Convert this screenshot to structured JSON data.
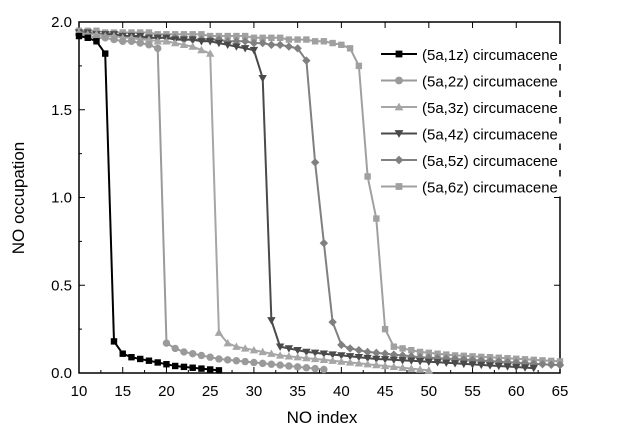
{
  "chart_data": {
    "type": "line",
    "title": "",
    "xlabel": "NO index",
    "ylabel": "NO occupation",
    "xlim": [
      10,
      65
    ],
    "ylim": [
      0.0,
      2.0
    ],
    "xticks": [
      "10",
      "15",
      "20",
      "25",
      "30",
      "35",
      "40",
      "45",
      "50",
      "55",
      "60",
      "65"
    ],
    "yticks": [
      "0.0",
      "0.5",
      "1.0",
      "1.5",
      "2.0"
    ],
    "grid": false,
    "legend_position": "top-right",
    "series": [
      {
        "name": "(5a,1z) circumacene",
        "color": "#000000",
        "marker": "square",
        "x": [
          10,
          11,
          12,
          13,
          14,
          15,
          16,
          17,
          18,
          19,
          20,
          21,
          22,
          23,
          24,
          25,
          26
        ],
        "y": [
          1.92,
          1.91,
          1.89,
          1.82,
          0.18,
          0.11,
          0.09,
          0.08,
          0.07,
          0.06,
          0.05,
          0.04,
          0.035,
          0.03,
          0.025,
          0.02,
          0.015
        ]
      },
      {
        "name": "(5a,2z) circumacene",
        "color": "#9a9a9a",
        "marker": "circle",
        "x": [
          10,
          11,
          12,
          13,
          14,
          15,
          16,
          17,
          18,
          19,
          20,
          21,
          22,
          23,
          24,
          25,
          26,
          27,
          28,
          29,
          30,
          31,
          32,
          33,
          34,
          35,
          36,
          37,
          38
        ],
        "y": [
          1.93,
          1.92,
          1.91,
          1.91,
          1.9,
          1.89,
          1.89,
          1.88,
          1.87,
          1.85,
          0.17,
          0.14,
          0.12,
          0.11,
          0.1,
          0.09,
          0.08,
          0.075,
          0.07,
          0.065,
          0.06,
          0.055,
          0.05,
          0.045,
          0.04,
          0.035,
          0.03,
          0.025,
          0.02
        ]
      },
      {
        "name": "(5a,3z) circumacene",
        "color": "#a6a6a6",
        "marker": "triangle-up",
        "x": [
          10,
          11,
          12,
          13,
          14,
          15,
          16,
          17,
          18,
          19,
          20,
          21,
          22,
          23,
          24,
          25,
          26,
          27,
          28,
          29,
          30,
          31,
          32,
          33,
          34,
          35,
          36,
          37,
          38,
          39,
          40,
          41,
          42,
          43,
          44,
          45,
          46,
          47,
          48,
          49,
          50
        ],
        "y": [
          1.94,
          1.93,
          1.93,
          1.92,
          1.92,
          1.91,
          1.91,
          1.9,
          1.9,
          1.89,
          1.89,
          1.88,
          1.87,
          1.86,
          1.84,
          1.82,
          0.23,
          0.17,
          0.15,
          0.14,
          0.13,
          0.12,
          0.11,
          0.1,
          0.095,
          0.09,
          0.085,
          0.08,
          0.075,
          0.07,
          0.065,
          0.06,
          0.055,
          0.05,
          0.045,
          0.04,
          0.035,
          0.03,
          0.025,
          0.02,
          0.015
        ]
      },
      {
        "name": "(5a,4z) circumacene",
        "color": "#4a4a4a",
        "marker": "triangle-down",
        "x": [
          10,
          11,
          12,
          13,
          14,
          15,
          16,
          17,
          18,
          19,
          20,
          21,
          22,
          23,
          24,
          25,
          26,
          27,
          28,
          29,
          30,
          31,
          32,
          33,
          34,
          35,
          36,
          37,
          38,
          39,
          40,
          41,
          42,
          43,
          44,
          45,
          46,
          47,
          48,
          49,
          50,
          51,
          52,
          53,
          54,
          55,
          56,
          57,
          58,
          59,
          60,
          61,
          62
        ],
        "y": [
          1.94,
          1.94,
          1.93,
          1.93,
          1.93,
          1.92,
          1.92,
          1.92,
          1.91,
          1.91,
          1.91,
          1.9,
          1.9,
          1.9,
          1.89,
          1.89,
          1.88,
          1.87,
          1.86,
          1.85,
          1.84,
          1.68,
          0.3,
          0.15,
          0.14,
          0.13,
          0.12,
          0.115,
          0.11,
          0.105,
          0.1,
          0.095,
          0.09,
          0.085,
          0.08,
          0.078,
          0.075,
          0.072,
          0.07,
          0.067,
          0.064,
          0.061,
          0.058,
          0.055,
          0.052,
          0.049,
          0.046,
          0.043,
          0.04,
          0.037,
          0.034,
          0.031,
          0.028
        ]
      },
      {
        "name": "(5a,5z) circumacene",
        "color": "#808080",
        "marker": "diamond",
        "x": [
          10,
          11,
          12,
          13,
          14,
          15,
          16,
          17,
          18,
          19,
          20,
          21,
          22,
          23,
          24,
          25,
          26,
          27,
          28,
          29,
          30,
          31,
          32,
          33,
          34,
          35,
          36,
          37,
          38,
          39,
          40,
          41,
          42,
          43,
          44,
          45,
          46,
          47,
          48,
          49,
          50,
          51,
          52,
          53,
          54,
          55,
          56,
          57,
          58,
          59,
          60,
          61,
          62,
          63,
          64,
          65
        ],
        "y": [
          1.93,
          1.93,
          1.93,
          1.92,
          1.92,
          1.92,
          1.92,
          1.91,
          1.91,
          1.91,
          1.91,
          1.91,
          1.9,
          1.9,
          1.9,
          1.9,
          1.9,
          1.89,
          1.89,
          1.89,
          1.88,
          1.88,
          1.87,
          1.87,
          1.86,
          1.85,
          1.78,
          1.2,
          0.74,
          0.29,
          0.16,
          0.14,
          0.13,
          0.12,
          0.115,
          0.11,
          0.105,
          0.1,
          0.095,
          0.09,
          0.088,
          0.085,
          0.082,
          0.08,
          0.077,
          0.074,
          0.071,
          0.068,
          0.065,
          0.062,
          0.059,
          0.056,
          0.053,
          0.05,
          0.047,
          0.045
        ]
      },
      {
        "name": "(5a,6z) circumacene",
        "color": "#a0a0a0",
        "marker": "square",
        "x": [
          10,
          11,
          12,
          13,
          14,
          15,
          16,
          17,
          18,
          19,
          20,
          21,
          22,
          23,
          24,
          25,
          26,
          27,
          28,
          29,
          30,
          31,
          32,
          33,
          34,
          35,
          36,
          37,
          38,
          39,
          40,
          41,
          42,
          43,
          44,
          45,
          46,
          47,
          48,
          49,
          50,
          51,
          52,
          53,
          54,
          55,
          56,
          57,
          58,
          59,
          60,
          61,
          62,
          63,
          64,
          65
        ],
        "y": [
          1.95,
          1.95,
          1.95,
          1.94,
          1.94,
          1.94,
          1.94,
          1.94,
          1.94,
          1.93,
          1.93,
          1.93,
          1.93,
          1.93,
          1.93,
          1.92,
          1.92,
          1.92,
          1.92,
          1.92,
          1.91,
          1.91,
          1.91,
          1.91,
          1.9,
          1.9,
          1.9,
          1.89,
          1.89,
          1.88,
          1.87,
          1.85,
          1.75,
          1.12,
          0.88,
          0.25,
          0.15,
          0.14,
          0.13,
          0.12,
          0.115,
          0.11,
          0.105,
          0.1,
          0.098,
          0.095,
          0.092,
          0.09,
          0.087,
          0.084,
          0.081,
          0.078,
          0.075,
          0.072,
          0.069,
          0.066
        ]
      }
    ]
  }
}
